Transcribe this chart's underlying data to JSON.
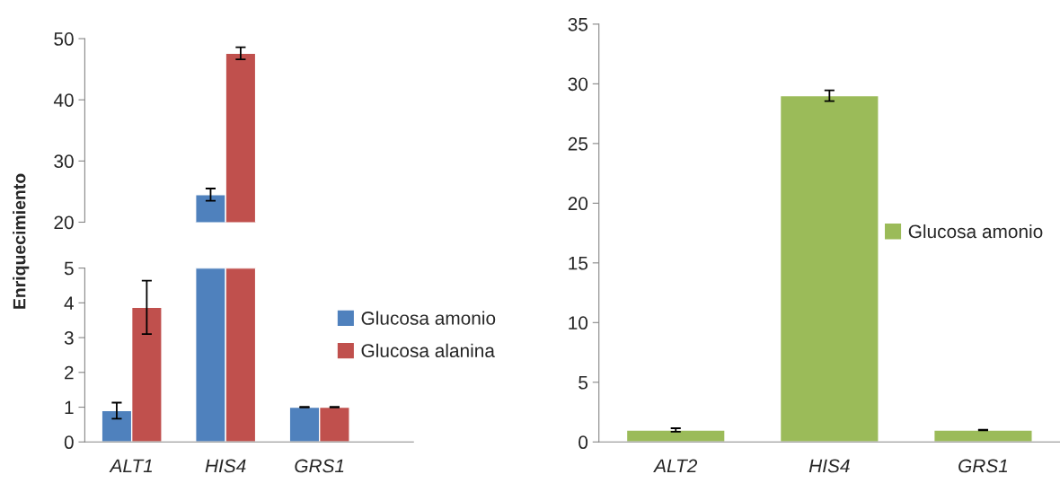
{
  "chart_data": [
    {
      "type": "bar",
      "categories": [
        null,
        null,
        null
      ],
      "ylim": [
        20,
        50
      ],
      "yticks": [
        20,
        30,
        40,
        50
      ],
      "tick_labels": "y",
      "grid": false,
      "legend": false,
      "series": [
        {
          "color": "#4f81bd",
          "values": [
            null,
            24.5,
            null
          ],
          "errors": [
            null,
            1.0,
            null
          ]
        },
        {
          "color": "#c0504d",
          "values": [
            null,
            47.6,
            null
          ],
          "errors": [
            null,
            1.0,
            null
          ]
        }
      ]
    },
    {
      "type": "bar",
      "categories": [
        "ALT1",
        "HIS4",
        "GRS1"
      ],
      "ylim": [
        0,
        5
      ],
      "yticks": [
        0,
        1,
        2,
        3,
        4,
        5
      ],
      "ylabel": "Enriquecimiento",
      "grid": false,
      "legend": "right",
      "series": [
        {
          "name": "Glucosa amonio",
          "color": "#4f81bd",
          "values": [
            0.9,
            5,
            1.0
          ],
          "errors": [
            0.23,
            null,
            0.01
          ]
        },
        {
          "name": "Glucosa alanina",
          "color": "#c0504d",
          "values": [
            3.87,
            5,
            1.0
          ],
          "errors": [
            0.77,
            null,
            0.01
          ]
        }
      ]
    },
    {
      "type": "bar",
      "categories": [
        "ALT2",
        "HIS4",
        "GRS1"
      ],
      "ylim": [
        0,
        35
      ],
      "yticks": [
        0,
        5,
        10,
        15,
        20,
        25,
        30,
        35
      ],
      "grid": false,
      "legend": "right",
      "series": [
        {
          "name": "Glucosa amonio",
          "color": "#9bbb59",
          "values": [
            1.0,
            29.0,
            1.0
          ],
          "errors": [
            0.15,
            0.45,
            0.02
          ]
        }
      ]
    }
  ]
}
